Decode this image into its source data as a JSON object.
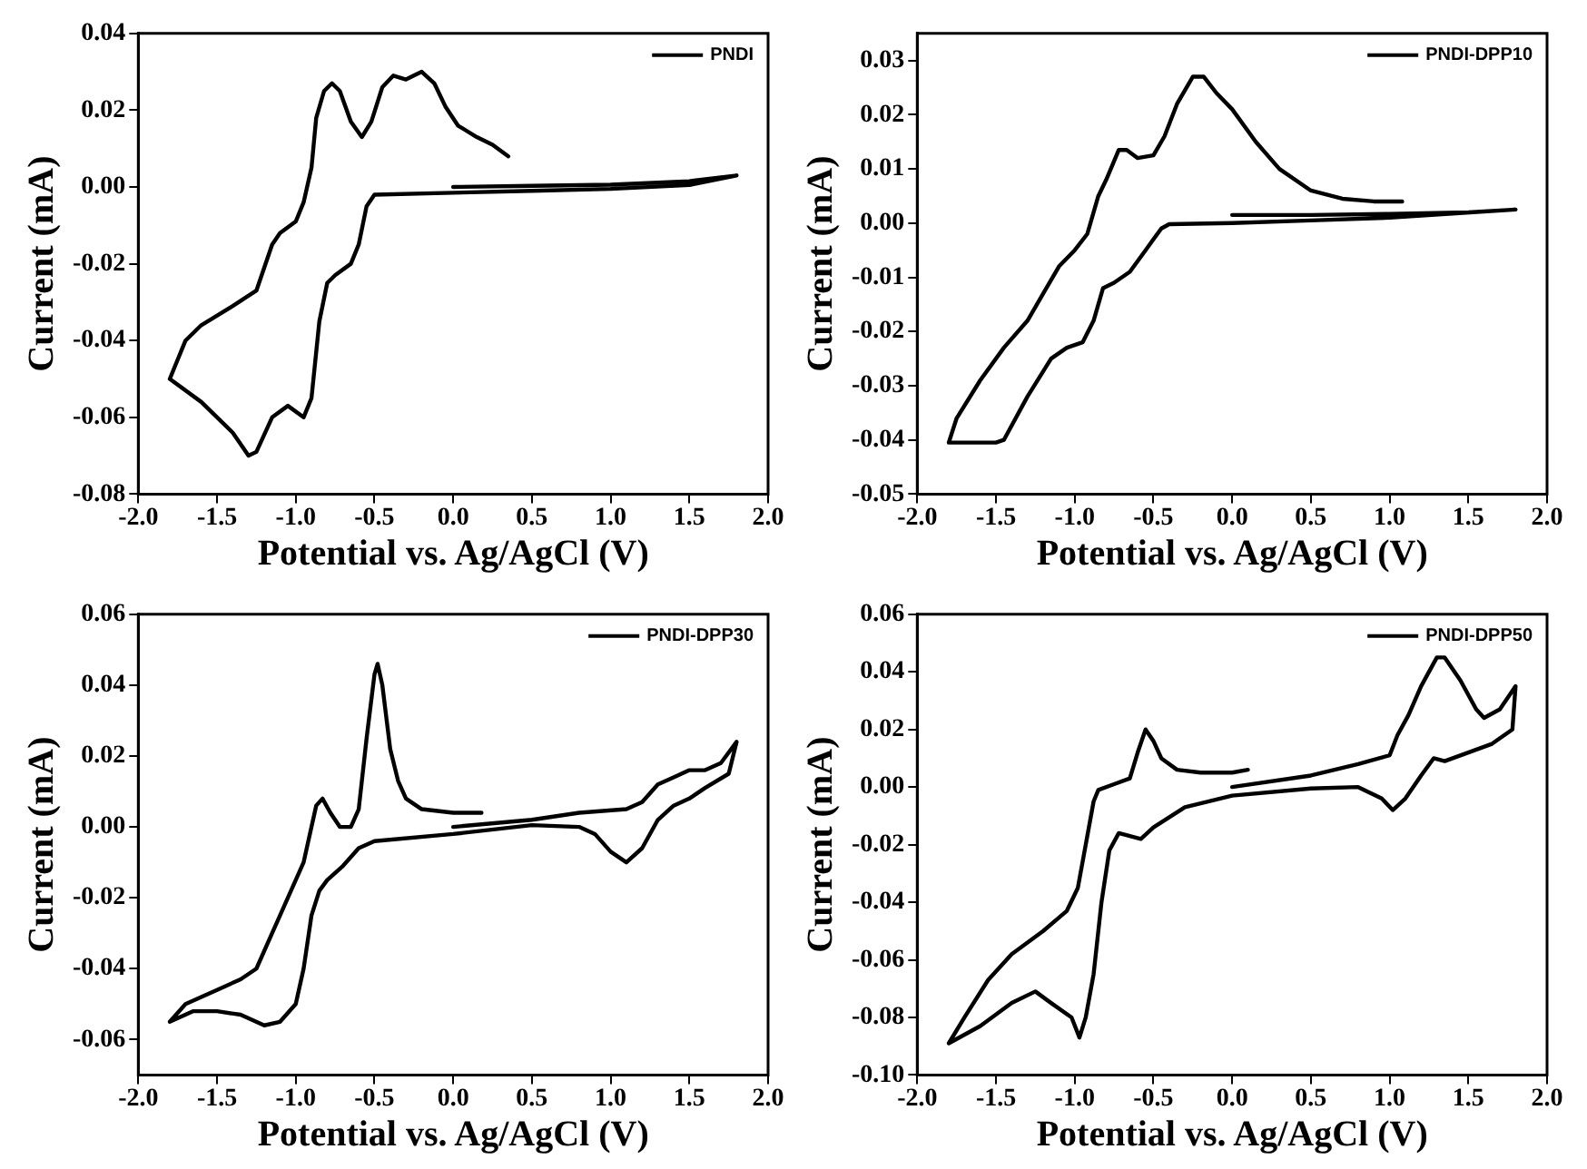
{
  "chart_data": [
    {
      "type": "line",
      "xlabel": "Potential vs. Ag/AgCl (V)",
      "ylabel": "Current (mA)",
      "legend": "top right",
      "xlim": [
        -2,
        2
      ],
      "xticks": [
        {
          "value": -2,
          "label": "-2.0"
        },
        {
          "value": -1.5,
          "label": "-1.5"
        },
        {
          "value": -1,
          "label": "-1.0"
        },
        {
          "value": -0.5,
          "label": "-0.5"
        },
        {
          "value": 0,
          "label": "0.0"
        },
        {
          "value": 0.5,
          "label": "0.5"
        },
        {
          "value": 1,
          "label": "1.0"
        },
        {
          "value": 1.5,
          "label": "1.5"
        },
        {
          "value": 2,
          "label": "2.0"
        }
      ],
      "ylim": [
        -0.08,
        0.04
      ],
      "yticks": [
        {
          "value": -0.08,
          "label": "-0.08"
        },
        {
          "value": -0.06,
          "label": "-0.06"
        },
        {
          "value": -0.04,
          "label": "-0.04"
        },
        {
          "value": -0.02,
          "label": "-0.02"
        },
        {
          "value": 0,
          "label": "0.00"
        },
        {
          "value": 0.02,
          "label": "0.02"
        },
        {
          "value": 0.04,
          "label": "0.04"
        }
      ],
      "series": [
        {
          "name": "PNDI",
          "color": "#000000",
          "x": [
            0,
            0.5,
            1.0,
            1.5,
            1.8,
            1.5,
            1.0,
            0.5,
            0,
            -0.5,
            -0.55,
            -0.6,
            -0.65,
            -0.75,
            -0.8,
            -0.85,
            -0.9,
            -0.95,
            -1.05,
            -1.15,
            -1.25,
            -1.3,
            -1.4,
            -1.6,
            -1.8,
            -1.7,
            -1.6,
            -1.4,
            -1.25,
            -1.15,
            -1.1,
            -1.0,
            -0.95,
            -0.9,
            -0.87,
            -0.82,
            -0.77,
            -0.72,
            -0.65,
            -0.58,
            -0.52,
            -0.45,
            -0.38,
            -0.3,
            -0.2,
            -0.12,
            -0.05,
            0.03,
            0.15,
            0.25,
            0.35
          ],
          "values": [
            0,
            0.0003,
            0.0006,
            0.0015,
            0.003,
            0.0005,
            -0.0005,
            -0.001,
            -0.0015,
            -0.002,
            -0.005,
            -0.015,
            -0.02,
            -0.023,
            -0.025,
            -0.035,
            -0.055,
            -0.06,
            -0.057,
            -0.06,
            -0.069,
            -0.07,
            -0.064,
            -0.056,
            -0.05,
            -0.04,
            -0.036,
            -0.031,
            -0.027,
            -0.015,
            -0.012,
            -0.009,
            -0.004,
            0.005,
            0.018,
            0.025,
            0.027,
            0.025,
            0.017,
            0.013,
            0.017,
            0.026,
            0.029,
            0.028,
            0.03,
            0.027,
            0.021,
            0.016,
            0.013,
            0.011,
            0.008
          ]
        }
      ]
    },
    {
      "type": "line",
      "xlabel": "Potential vs. Ag/AgCl (V)",
      "ylabel": "Current (mA)",
      "legend": "top right",
      "xlim": [
        -2,
        2
      ],
      "xticks": [
        {
          "value": -2,
          "label": "-2.0"
        },
        {
          "value": -1.5,
          "label": "-1.5"
        },
        {
          "value": -1,
          "label": "-1.0"
        },
        {
          "value": -0.5,
          "label": "-0.5"
        },
        {
          "value": 0,
          "label": "0.0"
        },
        {
          "value": 0.5,
          "label": "0.5"
        },
        {
          "value": 1,
          "label": "1.0"
        },
        {
          "value": 1.5,
          "label": "1.5"
        },
        {
          "value": 2,
          "label": "2.0"
        }
      ],
      "ylim": [
        -0.05,
        0.035
      ],
      "yticks": [
        {
          "value": -0.05,
          "label": "-0.05"
        },
        {
          "value": -0.04,
          "label": "-0.04"
        },
        {
          "value": -0.03,
          "label": "-0.03"
        },
        {
          "value": -0.02,
          "label": "-0.02"
        },
        {
          "value": -0.01,
          "label": "-0.01"
        },
        {
          "value": 0,
          "label": "0.00"
        },
        {
          "value": 0.01,
          "label": "0.01"
        },
        {
          "value": 0.02,
          "label": "0.02"
        },
        {
          "value": 0.03,
          "label": "0.03"
        }
      ],
      "series": [
        {
          "name": "PNDI-DPP10",
          "color": "#000000",
          "x": [
            0,
            0.5,
            1.0,
            1.5,
            1.8,
            1.0,
            0.5,
            0,
            -0.4,
            -0.45,
            -0.55,
            -0.65,
            -0.75,
            -0.82,
            -0.88,
            -0.95,
            -1.05,
            -1.15,
            -1.3,
            -1.45,
            -1.5,
            -1.8,
            -1.75,
            -1.6,
            -1.45,
            -1.3,
            -1.2,
            -1.1,
            -1.0,
            -0.92,
            -0.85,
            -0.8,
            -0.72,
            -0.67,
            -0.6,
            -0.5,
            -0.43,
            -0.35,
            -0.25,
            -0.18,
            -0.1,
            0.0,
            0.15,
            0.3,
            0.5,
            0.7,
            0.9,
            1.08
          ],
          "values": [
            0.0015,
            0.0015,
            0.0017,
            0.002,
            0.0025,
            0.001,
            0.0005,
            0,
            -0.0002,
            -0.001,
            -0.005,
            -0.009,
            -0.011,
            -0.012,
            -0.018,
            -0.022,
            -0.023,
            -0.025,
            -0.032,
            -0.04,
            -0.0405,
            -0.0405,
            -0.036,
            -0.029,
            -0.023,
            -0.018,
            -0.013,
            -0.008,
            -0.005,
            -0.002,
            0.005,
            0.008,
            0.0135,
            0.0135,
            0.012,
            0.0125,
            0.016,
            0.022,
            0.027,
            0.027,
            0.024,
            0.021,
            0.015,
            0.01,
            0.006,
            0.0045,
            0.004,
            0.004
          ]
        }
      ]
    },
    {
      "type": "line",
      "xlabel": "Potential vs. Ag/AgCl (V)",
      "ylabel": "Current (mA)",
      "legend": "top right",
      "xlim": [
        -2,
        2
      ],
      "xticks": [
        {
          "value": -2,
          "label": "-2.0"
        },
        {
          "value": -1.5,
          "label": "-1.5"
        },
        {
          "value": -1,
          "label": "-1.0"
        },
        {
          "value": -0.5,
          "label": "-0.5"
        },
        {
          "value": 0,
          "label": "0.0"
        },
        {
          "value": 0.5,
          "label": "0.5"
        },
        {
          "value": 1,
          "label": "1.0"
        },
        {
          "value": 1.5,
          "label": "1.5"
        },
        {
          "value": 2,
          "label": "2.0"
        }
      ],
      "ylim": [
        -0.07,
        0.06
      ],
      "yticks": [
        {
          "value": -0.06,
          "label": "-0.06"
        },
        {
          "value": -0.04,
          "label": "-0.04"
        },
        {
          "value": -0.02,
          "label": "-0.02"
        },
        {
          "value": 0,
          "label": "0.00"
        },
        {
          "value": 0.02,
          "label": "0.02"
        },
        {
          "value": 0.04,
          "label": "0.04"
        },
        {
          "value": 0.06,
          "label": "0.06"
        }
      ],
      "series": [
        {
          "name": "PNDI-DPP30",
          "color": "#000000",
          "x": [
            0,
            0.5,
            0.8,
            1.1,
            1.2,
            1.3,
            1.4,
            1.5,
            1.6,
            1.7,
            1.8,
            1.75,
            1.6,
            1.5,
            1.4,
            1.3,
            1.2,
            1.1,
            1.0,
            0.9,
            0.8,
            0.5,
            0,
            -0.5,
            -0.6,
            -0.7,
            -0.8,
            -0.85,
            -0.9,
            -0.95,
            -1.0,
            -1.1,
            -1.2,
            -1.35,
            -1.5,
            -1.65,
            -1.8,
            -1.7,
            -1.5,
            -1.35,
            -1.25,
            -1.15,
            -1.05,
            -0.95,
            -0.9,
            -0.87,
            -0.83,
            -0.78,
            -0.72,
            -0.65,
            -0.6,
            -0.55,
            -0.5,
            -0.48,
            -0.45,
            -0.4,
            -0.35,
            -0.3,
            -0.2,
            0,
            0.18
          ],
          "values": [
            0,
            0.002,
            0.004,
            0.005,
            0.007,
            0.012,
            0.014,
            0.016,
            0.016,
            0.018,
            0.024,
            0.015,
            0.011,
            0.008,
            0.006,
            0.002,
            -0.006,
            -0.01,
            -0.007,
            -0.002,
            0,
            0.0005,
            -0.002,
            -0.004,
            -0.006,
            -0.011,
            -0.015,
            -0.018,
            -0.025,
            -0.04,
            -0.05,
            -0.055,
            -0.056,
            -0.053,
            -0.052,
            -0.052,
            -0.055,
            -0.05,
            -0.046,
            -0.043,
            -0.04,
            -0.03,
            -0.02,
            -0.01,
            0,
            0.006,
            0.008,
            0.004,
            0,
            0,
            0.005,
            0.025,
            0.043,
            0.046,
            0.04,
            0.022,
            0.013,
            0.008,
            0.005,
            0.004,
            0.004
          ]
        }
      ]
    },
    {
      "type": "line",
      "xlabel": "Potential vs. Ag/AgCl (V)",
      "ylabel": "Current (mA)",
      "legend": "top right",
      "xlim": [
        -2,
        2
      ],
      "xticks": [
        {
          "value": -2,
          "label": "-2.0"
        },
        {
          "value": -1.5,
          "label": "-1.5"
        },
        {
          "value": -1,
          "label": "-1.0"
        },
        {
          "value": -0.5,
          "label": "-0.5"
        },
        {
          "value": 0,
          "label": "0.0"
        },
        {
          "value": 0.5,
          "label": "0.5"
        },
        {
          "value": 1,
          "label": "1.0"
        },
        {
          "value": 1.5,
          "label": "1.5"
        },
        {
          "value": 2,
          "label": "2.0"
        }
      ],
      "ylim": [
        -0.1,
        0.06
      ],
      "yticks": [
        {
          "value": -0.1,
          "label": "-0.10"
        },
        {
          "value": -0.08,
          "label": "-0.08"
        },
        {
          "value": -0.06,
          "label": "-0.06"
        },
        {
          "value": -0.04,
          "label": "-0.04"
        },
        {
          "value": -0.02,
          "label": "-0.02"
        },
        {
          "value": 0,
          "label": "0.00"
        },
        {
          "value": 0.02,
          "label": "0.02"
        },
        {
          "value": 0.04,
          "label": "0.04"
        },
        {
          "value": 0.06,
          "label": "0.06"
        }
      ],
      "series": [
        {
          "name": "PNDI-DPP50",
          "color": "#000000",
          "x": [
            0,
            0.5,
            0.8,
            1.0,
            1.05,
            1.12,
            1.2,
            1.3,
            1.35,
            1.45,
            1.55,
            1.6,
            1.7,
            1.8,
            1.78,
            1.65,
            1.5,
            1.35,
            1.28,
            1.2,
            1.1,
            1.02,
            0.95,
            0.8,
            0.5,
            0,
            -0.3,
            -0.5,
            -0.58,
            -0.65,
            -0.72,
            -0.78,
            -0.83,
            -0.88,
            -0.93,
            -0.97,
            -1.02,
            -1.15,
            -1.25,
            -1.4,
            -1.6,
            -1.8,
            -1.7,
            -1.55,
            -1.4,
            -1.2,
            -1.05,
            -0.98,
            -0.93,
            -0.88,
            -0.85,
            -0.75,
            -0.65,
            -0.6,
            -0.55,
            -0.5,
            -0.45,
            -0.35,
            -0.2,
            0,
            0.1
          ],
          "values": [
            0,
            0.004,
            0.008,
            0.011,
            0.018,
            0.025,
            0.035,
            0.045,
            0.045,
            0.037,
            0.027,
            0.024,
            0.027,
            0.035,
            0.02,
            0.015,
            0.012,
            0.009,
            0.01,
            0.004,
            -0.004,
            -0.008,
            -0.004,
            0,
            -0.0005,
            -0.003,
            -0.007,
            -0.014,
            -0.018,
            -0.017,
            -0.016,
            -0.022,
            -0.04,
            -0.065,
            -0.08,
            -0.087,
            -0.08,
            -0.075,
            -0.071,
            -0.075,
            -0.083,
            -0.089,
            -0.08,
            -0.067,
            -0.058,
            -0.05,
            -0.043,
            -0.035,
            -0.02,
            -0.005,
            -0.001,
            0.001,
            0.003,
            0.012,
            0.02,
            0.016,
            0.01,
            0.006,
            0.005,
            0.005,
            0.006
          ]
        }
      ]
    }
  ]
}
